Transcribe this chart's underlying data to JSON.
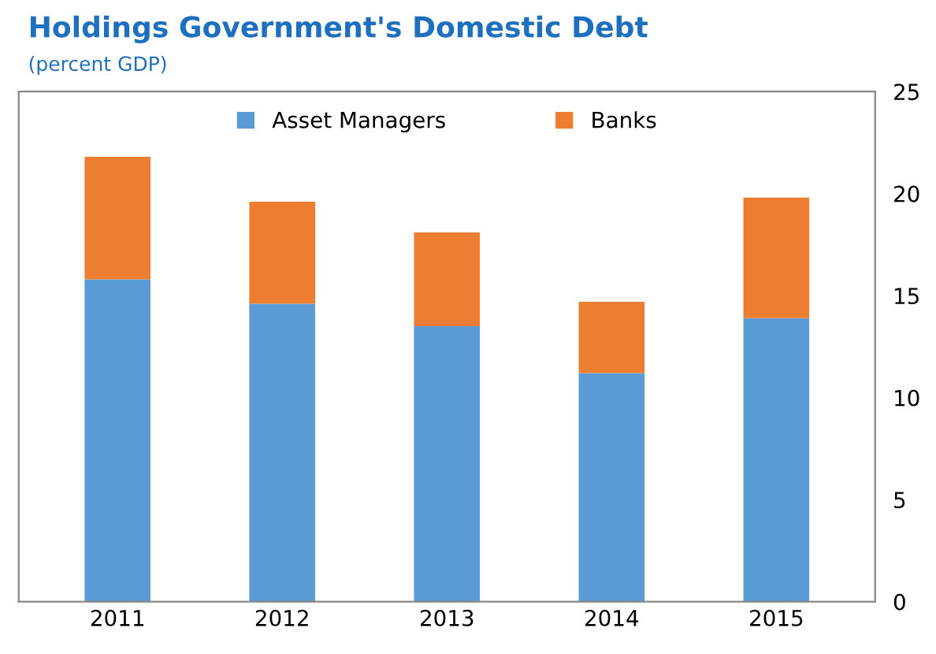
{
  "chart_data": {
    "type": "bar",
    "title": "Holdings Government's Domestic Debt",
    "subtitle": "(percent GDP)",
    "stacked": true,
    "categories": [
      "2011",
      "2012",
      "2013",
      "2014",
      "2015"
    ],
    "series": [
      {
        "name": "Asset Managers",
        "color": "#5b9bd5",
        "values": [
          15.8,
          14.6,
          13.5,
          11.2,
          13.9
        ]
      },
      {
        "name": "Banks",
        "color": "#ed7d31",
        "values": [
          6.0,
          5.0,
          4.6,
          3.5,
          5.9
        ]
      }
    ],
    "ylim": [
      0,
      25
    ],
    "yticks": [
      0,
      5,
      10,
      15,
      20,
      25
    ],
    "grid": false,
    "legend": "top"
  }
}
